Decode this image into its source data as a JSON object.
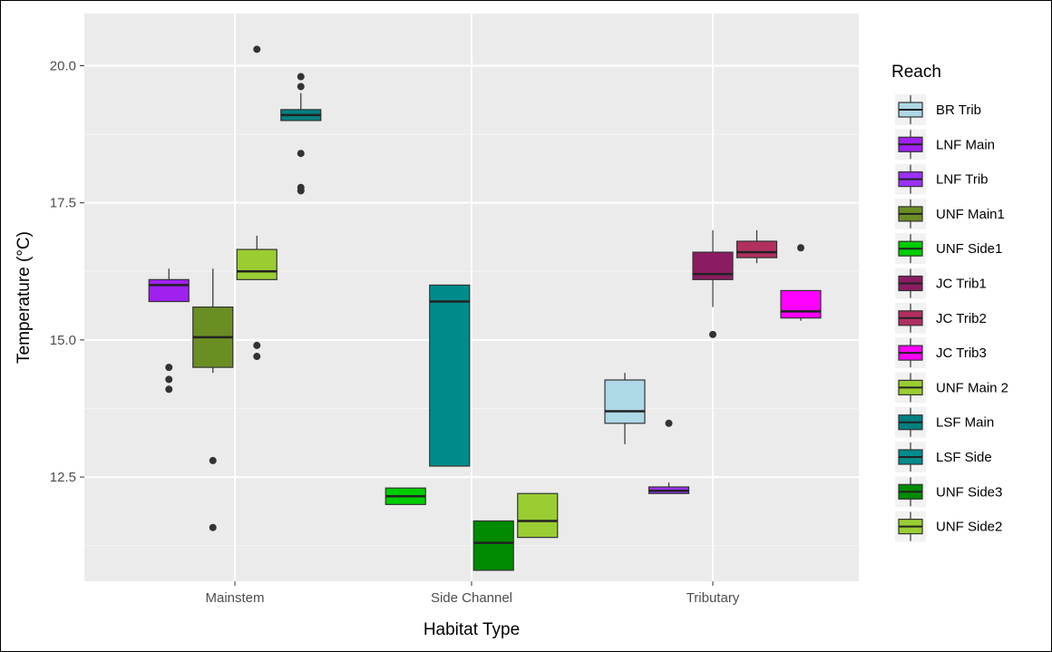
{
  "chart_data": {
    "type": "box",
    "xlabel": "Habitat Type",
    "ylabel": "Temperature (°C)",
    "ylim": [
      10.6,
      20.95
    ],
    "yticks": [
      12.5,
      15.0,
      17.5,
      20.0
    ],
    "ytick_labels": [
      "12.5",
      "15.0",
      "17.5",
      "20.0"
    ],
    "grid": true,
    "categories": [
      "Mainstem",
      "Side Channel",
      "Tributary"
    ],
    "legend": {
      "title": "Reach",
      "placement": "right",
      "items": [
        {
          "label": "BR Trib",
          "color": "#add8e6"
        },
        {
          "label": "LNF Main",
          "color": "#a020f0"
        },
        {
          "label": "LNF Trib",
          "color": "#9b30ff"
        },
        {
          "label": "UNF Main1",
          "color": "#6b8e23"
        },
        {
          "label": "UNF Side1",
          "color": "#00cd00"
        },
        {
          "label": "JC Trib1",
          "color": "#8b1c62"
        },
        {
          "label": "JC Trib2",
          "color": "#b03060"
        },
        {
          "label": "JC Trib3",
          "color": "#ff00ff"
        },
        {
          "label": "UNF Main 2",
          "color": "#9acd32"
        },
        {
          "label": "LSF Main",
          "color": "#008080"
        },
        {
          "label": "LSF Side",
          "color": "#008b8b"
        },
        {
          "label": "UNF Side3",
          "color": "#008b00"
        },
        {
          "label": "UNF Side2",
          "color": "#9acd32"
        }
      ]
    },
    "boxes": [
      {
        "category": "Mainstem",
        "reach": "LNF Main",
        "color": "#a020f0",
        "slot": 0,
        "min": 15.7,
        "q1": 15.7,
        "median": 16.0,
        "q3": 16.1,
        "max": 16.3,
        "outliers": [
          14.1,
          14.28,
          14.5
        ]
      },
      {
        "category": "Mainstem",
        "reach": "UNF Main1",
        "color": "#6b8e23",
        "slot": 1,
        "min": 14.4,
        "q1": 14.5,
        "median": 15.05,
        "q3": 15.6,
        "max": 16.3,
        "outliers": [
          11.58,
          12.8
        ]
      },
      {
        "category": "Mainstem",
        "reach": "UNF Main 2",
        "color": "#9acd32",
        "slot": 2,
        "min": 16.1,
        "q1": 16.1,
        "median": 16.25,
        "q3": 16.65,
        "max": 16.9,
        "outliers": [
          14.7,
          14.9,
          20.3
        ]
      },
      {
        "category": "Mainstem",
        "reach": "LSF Main",
        "color": "#008080",
        "slot": 3,
        "min": 19.0,
        "q1": 19.0,
        "median": 19.1,
        "q3": 19.2,
        "max": 19.5,
        "outliers": [
          17.72,
          17.78,
          18.4,
          19.62,
          19.8
        ]
      },
      {
        "category": "Side Channel",
        "reach": "UNF Side1",
        "color": "#00cd00",
        "slot": 0,
        "min": 12.0,
        "q1": 12.0,
        "median": 12.15,
        "q3": 12.3,
        "max": 12.3,
        "outliers": []
      },
      {
        "category": "Side Channel",
        "reach": "LSF Side",
        "color": "#008b8b",
        "slot": 1,
        "min": 12.7,
        "q1": 12.7,
        "median": 15.7,
        "q3": 16.0,
        "max": 16.0,
        "outliers": []
      },
      {
        "category": "Side Channel",
        "reach": "UNF Side3",
        "color": "#008b00",
        "slot": 2,
        "min": 10.8,
        "q1": 10.8,
        "median": 11.3,
        "q3": 11.7,
        "max": 11.7,
        "outliers": []
      },
      {
        "category": "Side Channel",
        "reach": "UNF Side2",
        "color": "#9acd32",
        "slot": 3,
        "min": 11.4,
        "q1": 11.4,
        "median": 11.7,
        "q3": 12.2,
        "max": 12.2,
        "outliers": []
      },
      {
        "category": "Tributary",
        "reach": "BR Trib",
        "color": "#add8e6",
        "slot": 0,
        "min": 13.1,
        "q1": 13.48,
        "median": 13.7,
        "q3": 14.27,
        "max": 14.4,
        "outliers": []
      },
      {
        "category": "Tributary",
        "reach": "LNF Trib",
        "color": "#9b30ff",
        "slot": 1,
        "min": 12.2,
        "q1": 12.2,
        "median": 12.25,
        "q3": 12.32,
        "max": 12.4,
        "outliers": [
          13.48
        ]
      },
      {
        "category": "Tributary",
        "reach": "JC Trib1",
        "color": "#8b1c62",
        "slot": 2,
        "min": 15.6,
        "q1": 16.1,
        "median": 16.2,
        "q3": 16.6,
        "max": 17.0,
        "outliers": [
          15.1
        ]
      },
      {
        "category": "Tributary",
        "reach": "JC Trib2",
        "color": "#b03060",
        "slot": 3,
        "min": 16.4,
        "q1": 16.5,
        "median": 16.6,
        "q3": 16.8,
        "max": 17.0,
        "outliers": []
      },
      {
        "category": "Tributary",
        "reach": "JC Trib3",
        "color": "#ff00ff",
        "slot": 4,
        "min": 15.35,
        "q1": 15.4,
        "median": 15.52,
        "q3": 15.9,
        "max": 15.9,
        "outliers": [
          16.68
        ]
      }
    ]
  }
}
